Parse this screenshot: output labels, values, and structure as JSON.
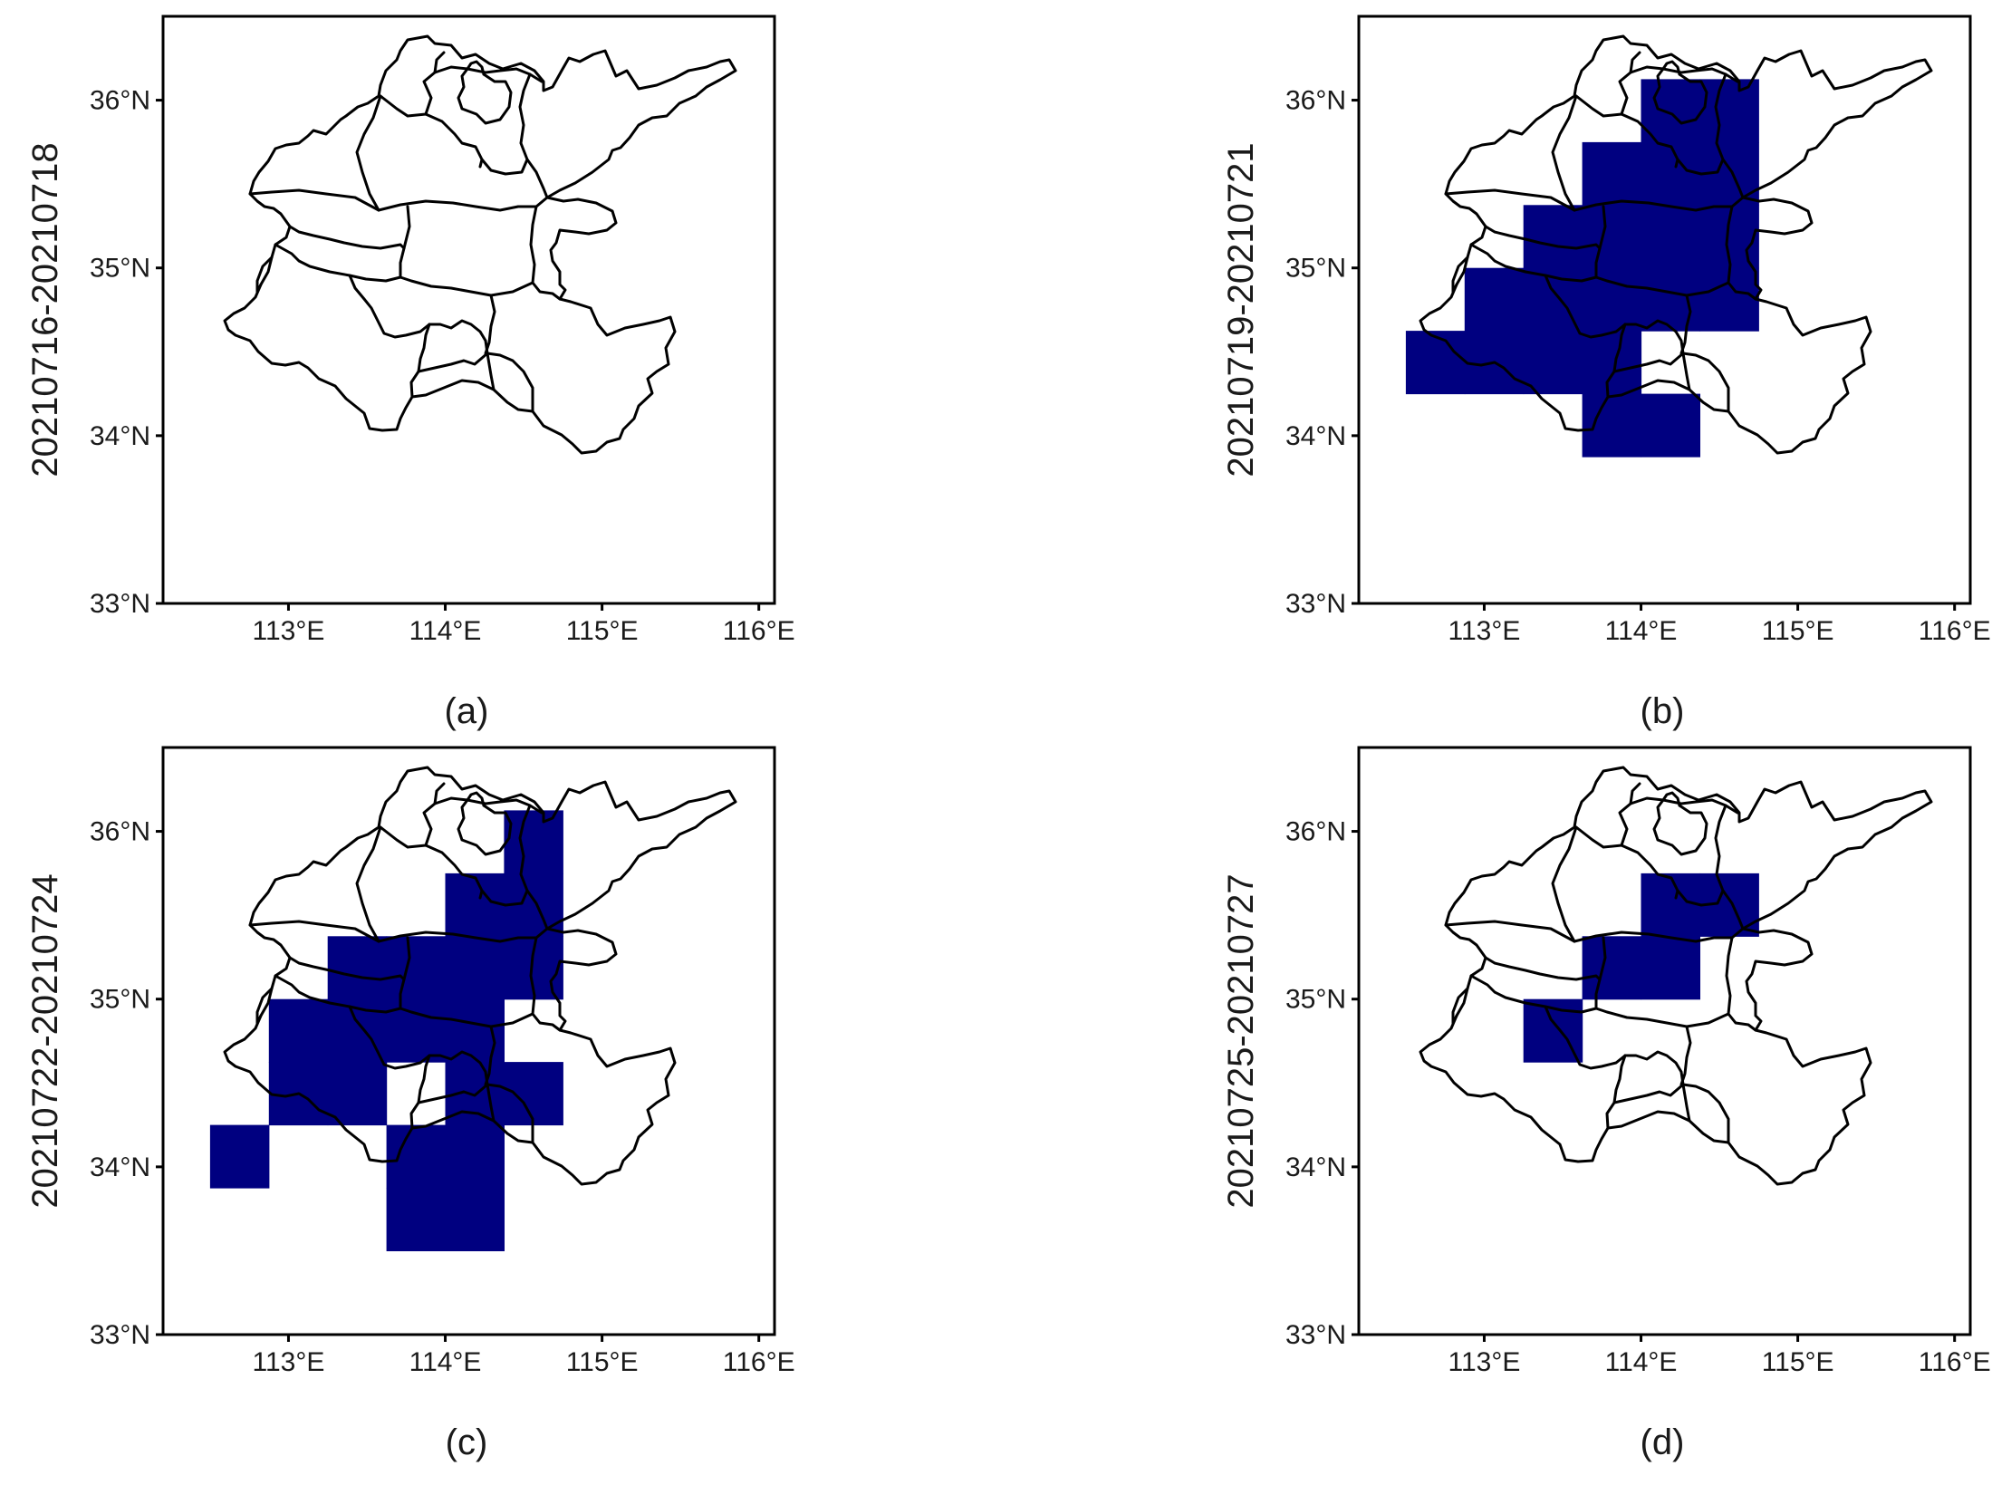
{
  "figure": {
    "panels": [
      {
        "caption": "(a)",
        "side_label": "20210716-20210718",
        "cells": []
      },
      {
        "caption": "(b)",
        "side_label": "20210719-20210721",
        "cells": [
          [
            114.0,
            35.75
          ],
          [
            114.375,
            35.75
          ],
          [
            113.625,
            35.375
          ],
          [
            114.0,
            35.375
          ],
          [
            114.375,
            35.375
          ],
          [
            113.25,
            35.0
          ],
          [
            113.625,
            35.0
          ],
          [
            114.0,
            35.0
          ],
          [
            114.375,
            35.0
          ],
          [
            112.875,
            34.625
          ],
          [
            113.25,
            34.625
          ],
          [
            113.625,
            34.625
          ],
          [
            114.0,
            34.625
          ],
          [
            114.375,
            34.625
          ],
          [
            112.5,
            34.25
          ],
          [
            112.875,
            34.25
          ],
          [
            113.25,
            34.25
          ],
          [
            113.625,
            34.25
          ],
          [
            113.625,
            33.875
          ],
          [
            114.0,
            33.875
          ]
        ]
      },
      {
        "caption": "(c)",
        "side_label": "20210722-20210724",
        "cells": [
          [
            114.375,
            35.75
          ],
          [
            114.0,
            35.375
          ],
          [
            114.375,
            35.375
          ],
          [
            113.25,
            35.0
          ],
          [
            113.625,
            35.0
          ],
          [
            114.0,
            35.0
          ],
          [
            114.375,
            35.0
          ],
          [
            112.875,
            34.625
          ],
          [
            113.25,
            34.625
          ],
          [
            113.625,
            34.625
          ],
          [
            114.0,
            34.625
          ],
          [
            112.875,
            34.25
          ],
          [
            113.25,
            34.25
          ],
          [
            114.0,
            34.25
          ],
          [
            114.375,
            34.25
          ],
          [
            112.5,
            33.875
          ],
          [
            113.625,
            33.875
          ],
          [
            114.0,
            33.875
          ],
          [
            113.625,
            33.5
          ],
          [
            114.0,
            33.5
          ]
        ]
      },
      {
        "caption": "(d)",
        "side_label": "20210725-20210727",
        "cells": [
          [
            114.0,
            35.375
          ],
          [
            114.375,
            35.375
          ],
          [
            113.625,
            35.0
          ],
          [
            114.0,
            35.0
          ],
          [
            113.25,
            34.625
          ]
        ]
      }
    ],
    "axes": {
      "x_ticks": [
        "113°E",
        "114°E",
        "115°E",
        "116°E"
      ],
      "y_ticks": [
        "33°N",
        "34°N",
        "35°N",
        "36°N"
      ],
      "x_tick_values": [
        113,
        114,
        115,
        116
      ],
      "y_tick_values": [
        33,
        34,
        35,
        36
      ],
      "xlim": [
        112.2,
        116.1
      ],
      "ylim": [
        33.0,
        36.5
      ],
      "grid_cell_deg": 0.375
    },
    "colors": {
      "fill": "#000080",
      "outline": "#000000",
      "frame": "#000000"
    }
  }
}
